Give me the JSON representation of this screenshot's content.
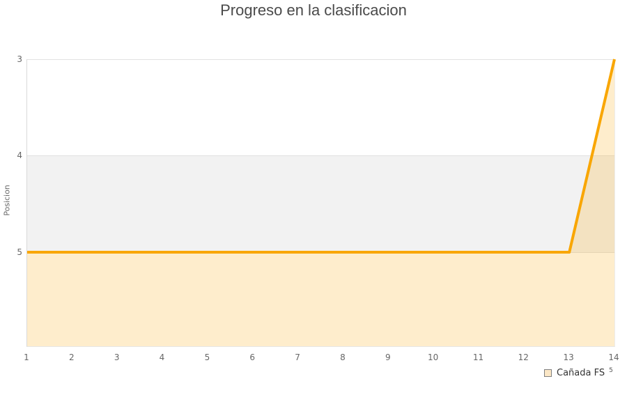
{
  "title": "Progreso en la clasificacion",
  "chart_data": {
    "type": "area",
    "title": "Progreso en la clasificacion",
    "xlabel": "",
    "ylabel": "Posicion",
    "x": [
      1,
      2,
      3,
      4,
      5,
      6,
      7,
      8,
      9,
      10,
      11,
      12,
      13,
      14
    ],
    "series": [
      {
        "name": "Cañada FS",
        "values": [
          5,
          5,
          5,
          5,
          5,
          5,
          5,
          5,
          5,
          5,
          5,
          5,
          5,
          3
        ]
      }
    ],
    "xlim": [
      1,
      14
    ],
    "ylim": [
      3,
      5.975
    ],
    "y_inverted": true,
    "y_ticks": [
      3,
      4,
      5
    ],
    "x_ticks": [
      1,
      2,
      3,
      4,
      5,
      6,
      7,
      8,
      9,
      10,
      11,
      12,
      13,
      14
    ],
    "grid": "horizontal",
    "band": {
      "from": 4,
      "to": 5,
      "color": "#f2f2f2"
    },
    "legend_position": "bottom-right",
    "colors": {
      "line": "#f9a602",
      "fill_alpha": 0.2,
      "grid": "#e2e2e2",
      "band": "#f2f2f2",
      "tick_text": "#666666",
      "title_text": "#4a4a4a"
    }
  },
  "legend": {
    "items": [
      {
        "label": "Cañada FS",
        "swatch_fill": "#fbe7c6",
        "swatch_border": "#7f7f7f"
      }
    ],
    "superscript": "5"
  }
}
